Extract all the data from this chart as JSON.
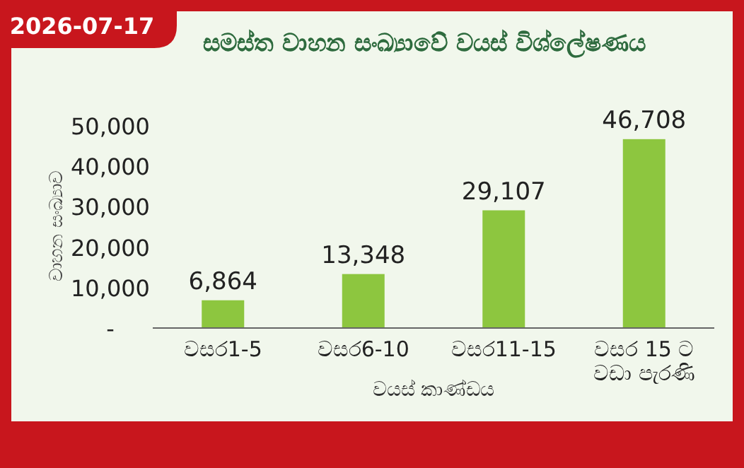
{
  "chart_data": {
    "type": "bar",
    "title": "සමස්ත වාහන සංඛ්‍යාවේ වයස් විශ්ලේෂණය",
    "xlabel": "වයස් කාණ්ඩය",
    "ylabel": "වාහන සංඛ්‍යාව",
    "annotations": [
      "2026-07-17"
    ],
    "categories": [
      "වසර1-5",
      "වසර6-10",
      "වසර11-15",
      "වසර 15 ට වඩා පැරණි"
    ],
    "values": [
      6864,
      13348,
      29107,
      46708
    ],
    "color": "#8dc63f",
    "value_labels": [
      "6,864",
      "13,348",
      "29,107",
      "46,708"
    ],
    "ylim": [
      0,
      50000
    ],
    "yticks": [
      {
        "value": 0,
        "label": "-"
      },
      {
        "value": 10000,
        "label": "10,000"
      },
      {
        "value": 20000,
        "label": "20,000"
      },
      {
        "value": 30000,
        "label": "30,000"
      },
      {
        "value": 40000,
        "label": "40,000"
      },
      {
        "value": 50000,
        "label": "50,000"
      }
    ]
  }
}
